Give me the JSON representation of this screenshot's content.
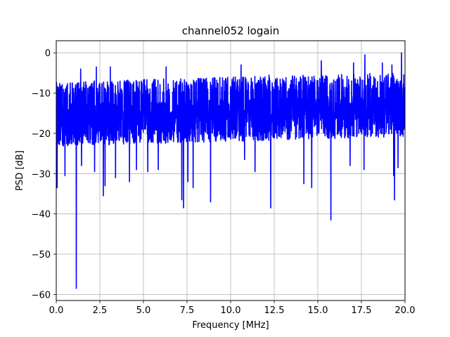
{
  "chart_data": {
    "type": "line",
    "title": "channel052 logain",
    "xlabel": "Frequency [MHz]",
    "ylabel": "PSD [dB]",
    "xlim": [
      0,
      20
    ],
    "ylim": [
      -61.5,
      3
    ],
    "grid": true,
    "x_ticks": [
      0.0,
      2.5,
      5.0,
      7.5,
      10.0,
      12.5,
      15.0,
      17.5,
      20.0
    ],
    "x_tick_labels": [
      "0.0",
      "2.5",
      "5.0",
      "7.5",
      "10.0",
      "12.5",
      "15.0",
      "17.5",
      "20.0"
    ],
    "y_ticks": [
      0,
      -10,
      -20,
      -30,
      -40,
      -50,
      -60
    ],
    "y_tick_labels": [
      "0",
      "−10",
      "−20",
      "−30",
      "−40",
      "−50",
      "−60"
    ],
    "line_color": "#0000ff",
    "series": [
      {
        "x_range": [
          0,
          20
        ],
        "baseline_db": -14.5,
        "noise_band_db": [
          -22,
          -6
        ],
        "dips": [
          {
            "x": 0.05,
            "y": -33.5
          },
          {
            "x": 0.5,
            "y": -30.5
          },
          {
            "x": 1.15,
            "y": -58.5
          },
          {
            "x": 1.45,
            "y": -28
          },
          {
            "x": 2.2,
            "y": -29.5
          },
          {
            "x": 2.7,
            "y": -35.5
          },
          {
            "x": 2.8,
            "y": -33
          },
          {
            "x": 3.4,
            "y": -31
          },
          {
            "x": 4.2,
            "y": -32
          },
          {
            "x": 4.6,
            "y": -29
          },
          {
            "x": 5.25,
            "y": -29.5
          },
          {
            "x": 5.85,
            "y": -29
          },
          {
            "x": 7.2,
            "y": -36.5
          },
          {
            "x": 7.3,
            "y": -38.5
          },
          {
            "x": 7.55,
            "y": -32
          },
          {
            "x": 7.85,
            "y": -33.5
          },
          {
            "x": 8.85,
            "y": -37
          },
          {
            "x": 10.8,
            "y": -26.5
          },
          {
            "x": 11.4,
            "y": -29.5
          },
          {
            "x": 12.3,
            "y": -38.5
          },
          {
            "x": 14.2,
            "y": -32.5
          },
          {
            "x": 14.65,
            "y": -33.5
          },
          {
            "x": 15.75,
            "y": -41.5
          },
          {
            "x": 16.85,
            "y": -28
          },
          {
            "x": 17.65,
            "y": -29
          },
          {
            "x": 19.35,
            "y": -30.5
          },
          {
            "x": 19.4,
            "y": -36.5
          },
          {
            "x": 19.6,
            "y": -28.5
          }
        ],
        "peaks": [
          {
            "x": 1.4,
            "y": -4
          },
          {
            "x": 2.3,
            "y": -3.5
          },
          {
            "x": 3.1,
            "y": -3.5
          },
          {
            "x": 6.3,
            "y": -3.5
          },
          {
            "x": 10.6,
            "y": -3
          },
          {
            "x": 12.2,
            "y": -5.5
          },
          {
            "x": 15.2,
            "y": -2
          },
          {
            "x": 17.05,
            "y": -2.5
          },
          {
            "x": 17.7,
            "y": -0.5
          },
          {
            "x": 18.7,
            "y": -2.5
          },
          {
            "x": 19.25,
            "y": -3
          },
          {
            "x": 19.8,
            "y": 0
          }
        ]
      }
    ]
  }
}
